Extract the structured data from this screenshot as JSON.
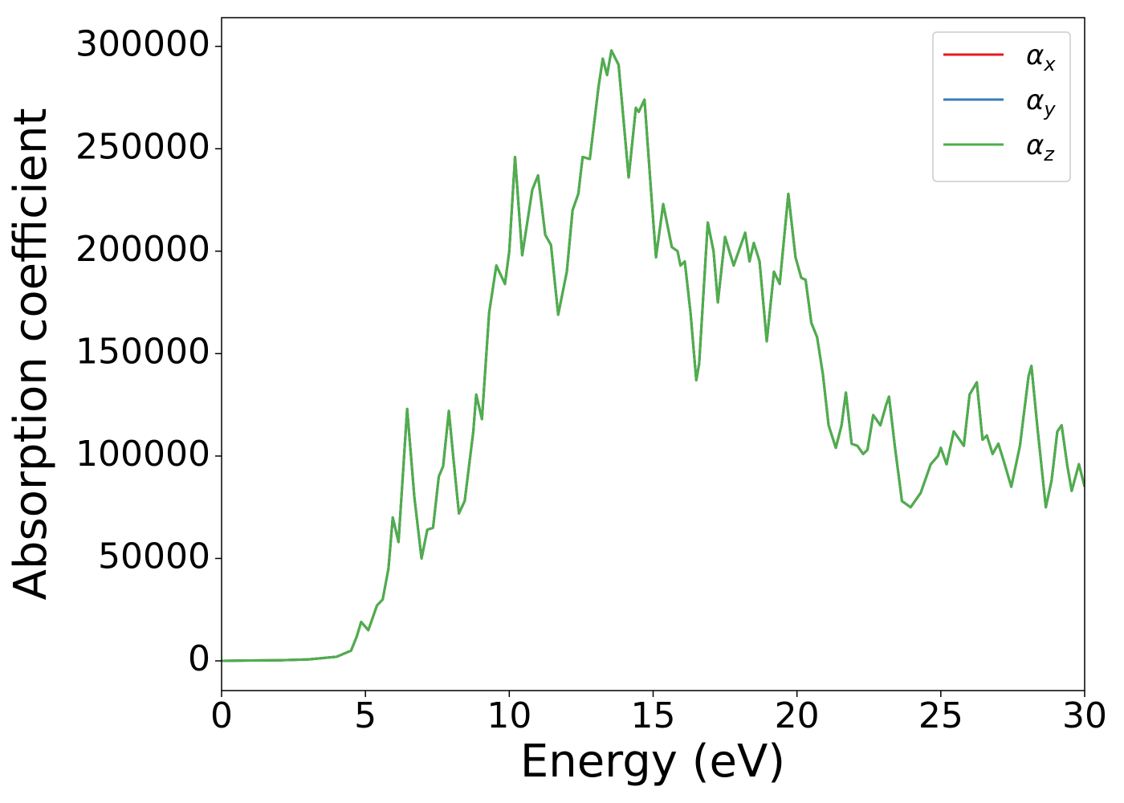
{
  "chart_data": {
    "type": "line",
    "xlabel": "Energy (eV)",
    "ylabel": "Absorption coefficient",
    "xlim": [
      0,
      30
    ],
    "ylim": [
      -14500,
      314000
    ],
    "xticks": [
      0,
      5,
      10,
      15,
      20,
      25,
      30
    ],
    "yticks": [
      0,
      50000,
      100000,
      150000,
      200000,
      250000,
      300000
    ],
    "legend": "upper right",
    "grid": false,
    "x": [
      0,
      1,
      2,
      3,
      4,
      4.5,
      4.7,
      4.85,
      5.1,
      5.4,
      5.6,
      5.8,
      5.95,
      6.15,
      6.45,
      6.7,
      6.95,
      7.15,
      7.35,
      7.55,
      7.7,
      7.9,
      8.05,
      8.25,
      8.45,
      8.75,
      8.85,
      9.05,
      9.3,
      9.55,
      9.85,
      10,
      10.2,
      10.45,
      10.8,
      11,
      11.25,
      11.45,
      11.7,
      12,
      12.2,
      12.4,
      12.55,
      12.8,
      13.1,
      13.25,
      13.4,
      13.55,
      13.8,
      14.15,
      14.4,
      14.5,
      14.7,
      14.95,
      15.1,
      15.35,
      15.65,
      15.85,
      15.95,
      16.1,
      16.3,
      16.5,
      16.6,
      16.9,
      17.1,
      17.25,
      17.5,
      17.8,
      18.1,
      18.2,
      18.35,
      18.5,
      18.7,
      18.95,
      19.2,
      19.4,
      19.7,
      19.95,
      20.15,
      20.3,
      20.5,
      20.7,
      20.9,
      21.1,
      21.35,
      21.55,
      21.7,
      21.9,
      22.1,
      22.3,
      22.45,
      22.65,
      22.9,
      23.1,
      23.2,
      23.4,
      23.65,
      23.95,
      24.3,
      24.65,
      24.9,
      25,
      25.2,
      25.45,
      25.65,
      25.8,
      26,
      26.25,
      26.45,
      26.6,
      26.8,
      27,
      27.2,
      27.45,
      27.75,
      28.05,
      28.15,
      28.35,
      28.65,
      28.85,
      29.05,
      29.2,
      29.4,
      29.55,
      29.8,
      30
    ],
    "series": [
      {
        "name": "αx",
        "color": "#e41a1c",
        "values": [
          0,
          200,
          300,
          700,
          2000,
          5000,
          12000,
          19000,
          15000,
          27000,
          30000,
          45000,
          70000,
          58000,
          123000,
          80000,
          50000,
          64000,
          65000,
          90000,
          95000,
          122000,
          100000,
          72000,
          78000,
          112000,
          130000,
          118000,
          170000,
          193000,
          184000,
          200000,
          246000,
          198000,
          230000,
          237000,
          208000,
          203000,
          169000,
          190000,
          220000,
          228000,
          246000,
          245000,
          280000,
          294000,
          286000,
          298000,
          291000,
          236000,
          270000,
          268000,
          274000,
          225000,
          197000,
          223000,
          202000,
          200000,
          193000,
          195000,
          170000,
          137000,
          145000,
          214000,
          200000,
          175000,
          207000,
          193000,
          205000,
          209000,
          195000,
          204000,
          195000,
          156000,
          190000,
          184000,
          228000,
          197000,
          187000,
          186000,
          165000,
          158000,
          140000,
          115000,
          104000,
          115000,
          131000,
          106000,
          105000,
          101000,
          103000,
          120000,
          115000,
          125000,
          129000,
          105000,
          78000,
          75000,
          82000,
          96000,
          100000,
          104000,
          96000,
          112000,
          108000,
          105000,
          130000,
          136000,
          108000,
          110000,
          101000,
          106000,
          97000,
          85000,
          105000,
          139000,
          144000,
          115000,
          75000,
          88000,
          112000,
          115000,
          95000,
          83000,
          96000,
          85000
        ]
      },
      {
        "name": "αy",
        "color": "#377eb8",
        "values": [
          0,
          200,
          300,
          700,
          2000,
          5000,
          12000,
          19000,
          15000,
          27000,
          30000,
          45000,
          70000,
          58000,
          123000,
          80000,
          50000,
          64000,
          65000,
          90000,
          95000,
          122000,
          100000,
          72000,
          78000,
          112000,
          130000,
          118000,
          170000,
          193000,
          184000,
          200000,
          246000,
          198000,
          230000,
          237000,
          208000,
          203000,
          169000,
          190000,
          220000,
          228000,
          246000,
          245000,
          280000,
          294000,
          286000,
          298000,
          291000,
          236000,
          270000,
          268000,
          274000,
          225000,
          197000,
          223000,
          202000,
          200000,
          193000,
          195000,
          170000,
          137000,
          145000,
          214000,
          200000,
          175000,
          207000,
          193000,
          205000,
          209000,
          195000,
          204000,
          195000,
          156000,
          190000,
          184000,
          228000,
          197000,
          187000,
          186000,
          165000,
          158000,
          140000,
          115000,
          104000,
          115000,
          131000,
          106000,
          105000,
          101000,
          103000,
          120000,
          115000,
          125000,
          129000,
          105000,
          78000,
          75000,
          82000,
          96000,
          100000,
          104000,
          96000,
          112000,
          108000,
          105000,
          130000,
          136000,
          108000,
          110000,
          101000,
          106000,
          97000,
          85000,
          105000,
          139000,
          144000,
          115000,
          75000,
          88000,
          112000,
          115000,
          95000,
          83000,
          96000,
          85000
        ]
      },
      {
        "name": "αz",
        "color": "#4daf4a",
        "values": [
          0,
          200,
          300,
          700,
          2000,
          5000,
          12000,
          19000,
          15000,
          27000,
          30000,
          45000,
          70000,
          58000,
          123000,
          80000,
          50000,
          64000,
          65000,
          90000,
          95000,
          122000,
          100000,
          72000,
          78000,
          112000,
          130000,
          118000,
          170000,
          193000,
          184000,
          200000,
          246000,
          198000,
          230000,
          237000,
          208000,
          203000,
          169000,
          190000,
          220000,
          228000,
          246000,
          245000,
          280000,
          294000,
          286000,
          298000,
          291000,
          236000,
          270000,
          268000,
          274000,
          225000,
          197000,
          223000,
          202000,
          200000,
          193000,
          195000,
          170000,
          137000,
          145000,
          214000,
          200000,
          175000,
          207000,
          193000,
          205000,
          209000,
          195000,
          204000,
          195000,
          156000,
          190000,
          184000,
          228000,
          197000,
          187000,
          186000,
          165000,
          158000,
          140000,
          115000,
          104000,
          115000,
          131000,
          106000,
          105000,
          101000,
          103000,
          120000,
          115000,
          125000,
          129000,
          105000,
          78000,
          75000,
          82000,
          96000,
          100000,
          104000,
          96000,
          112000,
          108000,
          105000,
          130000,
          136000,
          108000,
          110000,
          101000,
          106000,
          97000,
          85000,
          105000,
          139000,
          144000,
          115000,
          75000,
          88000,
          112000,
          115000,
          95000,
          83000,
          96000,
          85000
        ]
      }
    ]
  }
}
